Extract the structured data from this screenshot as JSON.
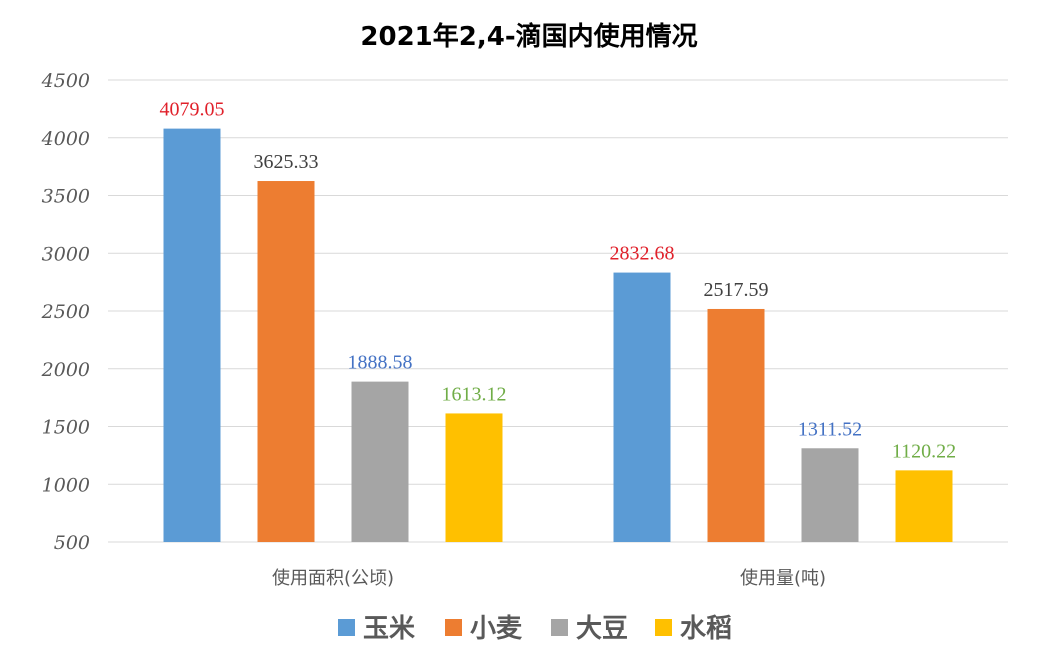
{
  "chart_data": {
    "type": "bar",
    "title": "2021年2,4-滴国内使用情况",
    "categories": [
      "使用面积(公顷)",
      "使用量(吨)"
    ],
    "series": [
      {
        "name": "玉米",
        "color": "#5b9bd5",
        "label_color": "#e0202a",
        "values": [
          4079.05,
          2832.68
        ],
        "labels": [
          "4079.05",
          "2832.68"
        ]
      },
      {
        "name": "小麦",
        "color": "#ed7d31",
        "label_color": "#404040",
        "values": [
          3625.33,
          2517.59
        ],
        "labels": [
          "3625.33",
          "2517.59"
        ]
      },
      {
        "name": "大豆",
        "color": "#a5a5a5",
        "label_color": "#4472c4",
        "values": [
          1888.58,
          1311.52
        ],
        "labels": [
          "1888.58",
          "1311.52"
        ]
      },
      {
        "name": "水稻",
        "color": "#ffc000",
        "label_color": "#70ad47",
        "values": [
          1613.12,
          1120.22
        ],
        "labels": [
          "1613.12",
          "1120.22"
        ]
      }
    ],
    "ylim": [
      500,
      4500
    ],
    "yticks": [
      "500",
      "1000",
      "1500",
      "2000",
      "2500",
      "3000",
      "3500",
      "4000",
      "4500"
    ],
    "grid": true,
    "legend_position": "bottom"
  }
}
